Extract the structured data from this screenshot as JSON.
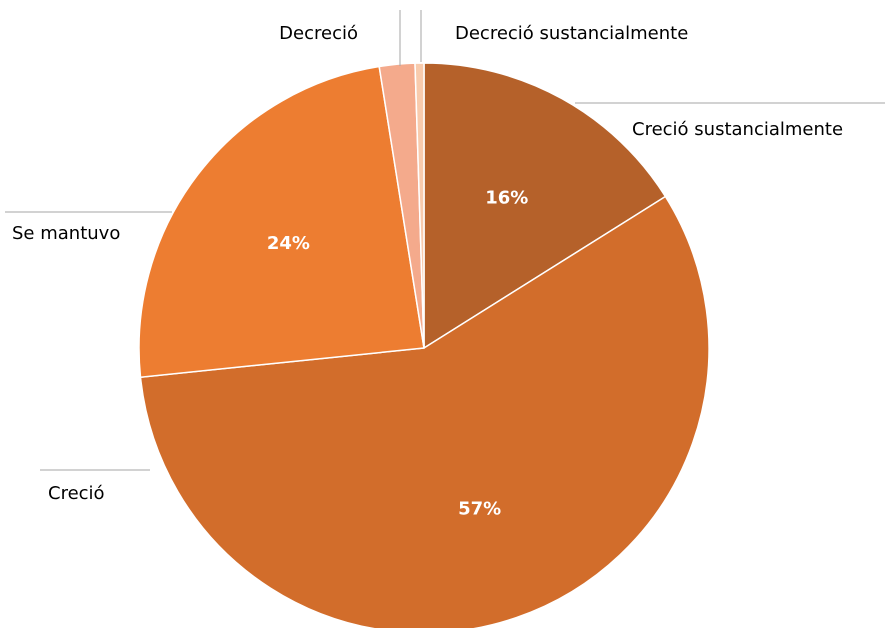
{
  "chart_data": {
    "type": "pie",
    "categories": [
      "Creció sustancialmente",
      "Creció",
      "Se mantuvo",
      "Decreció",
      "Decreció sustancialmente"
    ],
    "values": [
      16,
      57,
      24,
      2,
      0.5
    ],
    "value_labels": [
      "16%",
      "57%",
      "24%",
      null,
      null
    ],
    "colors": [
      "#b5612a",
      "#d26d2b",
      "#ed7d31",
      "#f4aa8c",
      "#f8cbad"
    ]
  }
}
